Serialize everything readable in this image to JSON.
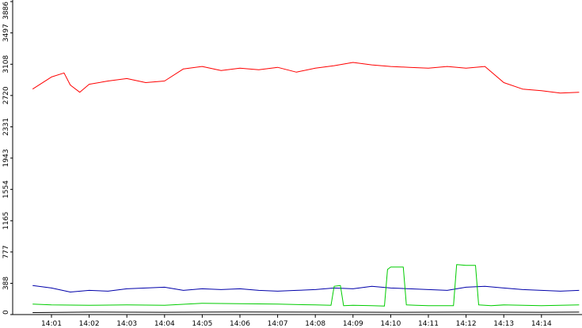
{
  "chart_data": {
    "type": "line",
    "title": "",
    "xlabel": "",
    "ylabel": "",
    "ylim": [
      0,
      3886
    ],
    "xlim": [
      "14:00:30",
      "14:15:00"
    ],
    "grid": false,
    "legend": "none",
    "y_ticks": [
      {
        "value": 0,
        "label": "0"
      },
      {
        "value": 388,
        "label": "388"
      },
      {
        "value": 777,
        "label": "777"
      },
      {
        "value": 1165,
        "label": "1165"
      },
      {
        "value": 1554,
        "label": "1554"
      },
      {
        "value": 1943,
        "label": "1943"
      },
      {
        "value": 2331,
        "label": "2331"
      },
      {
        "value": 2720,
        "label": "2720"
      },
      {
        "value": 3108,
        "label": "3108"
      },
      {
        "value": 3497,
        "label": "3497"
      },
      {
        "value": 3886,
        "label": "3886"
      }
    ],
    "x_ticks": [
      "14:01",
      "14:02",
      "14:03",
      "14:04",
      "14:05",
      "14:06",
      "14:07",
      "14:08",
      "14:09",
      "14:10",
      "14:11",
      "14:12",
      "14:13",
      "14:14"
    ],
    "series": [
      {
        "color": "#ff0000",
        "x": [
          "14:00:30",
          "14:01",
          "14:01:20",
          "14:01:30",
          "14:01:45",
          "14:02",
          "14:02:30",
          "14:03",
          "14:03:30",
          "14:04",
          "14:04:30",
          "14:05",
          "14:05:30",
          "14:06",
          "14:06:30",
          "14:07",
          "14:07:30",
          "14:08",
          "14:08:30",
          "14:09",
          "14:09:30",
          "14:10",
          "14:10:30",
          "14:11",
          "14:11:30",
          "14:12",
          "14:12:30",
          "14:13",
          "14:13:30",
          "14:14",
          "14:14:30",
          "14:15"
        ],
        "values": [
          2800,
          2950,
          3000,
          2850,
          2760,
          2860,
          2900,
          2930,
          2880,
          2900,
          3050,
          3080,
          3030,
          3060,
          3040,
          3070,
          3010,
          3060,
          3090,
          3130,
          3100,
          3080,
          3070,
          3060,
          3080,
          3060,
          3080,
          2880,
          2800,
          2780,
          2750,
          2760
        ]
      },
      {
        "color": "#0000aa",
        "x": [
          "14:00:30",
          "14:01",
          "14:01:30",
          "14:02",
          "14:02:30",
          "14:03",
          "14:03:30",
          "14:04",
          "14:04:30",
          "14:05",
          "14:05:30",
          "14:06",
          "14:06:30",
          "14:07",
          "14:07:30",
          "14:08",
          "14:08:30",
          "14:09",
          "14:09:30",
          "14:10",
          "14:10:30",
          "14:11",
          "14:11:30",
          "14:12",
          "14:12:30",
          "14:13",
          "14:13:30",
          "14:14",
          "14:14:30",
          "14:15"
        ],
        "values": [
          360,
          330,
          280,
          300,
          290,
          320,
          330,
          340,
          300,
          320,
          310,
          320,
          300,
          290,
          300,
          310,
          330,
          320,
          350,
          330,
          320,
          310,
          300,
          340,
          350,
          330,
          310,
          300,
          290,
          300
        ]
      },
      {
        "color": "#00cc00",
        "x": [
          "14:00:30",
          "14:01",
          "14:02",
          "14:03",
          "14:04",
          "14:05",
          "14:06",
          "14:07",
          "14:08",
          "14:08:25",
          "14:08:30",
          "14:08:40",
          "14:08:45",
          "14:09",
          "14:09:30",
          "14:09:50",
          "14:09:55",
          "14:10",
          "14:10:20",
          "14:10:25",
          "14:10:40",
          "14:11",
          "14:11:40",
          "14:11:45",
          "14:12",
          "14:12:15",
          "14:12:20",
          "14:12:40",
          "14:13",
          "14:14",
          "14:15"
        ],
        "values": [
          130,
          120,
          115,
          120,
          115,
          140,
          135,
          130,
          120,
          115,
          350,
          360,
          110,
          115,
          110,
          105,
          560,
          590,
          590,
          120,
          115,
          110,
          110,
          620,
          610,
          610,
          120,
          110,
          120,
          110,
          120
        ]
      },
      {
        "color": "#000000",
        "x": [
          "14:00:30",
          "14:02",
          "14:04",
          "14:06",
          "14:08",
          "14:10",
          "14:12",
          "14:14",
          "14:15"
        ],
        "values": [
          25,
          30,
          28,
          32,
          30,
          28,
          30,
          28,
          30
        ]
      }
    ]
  }
}
